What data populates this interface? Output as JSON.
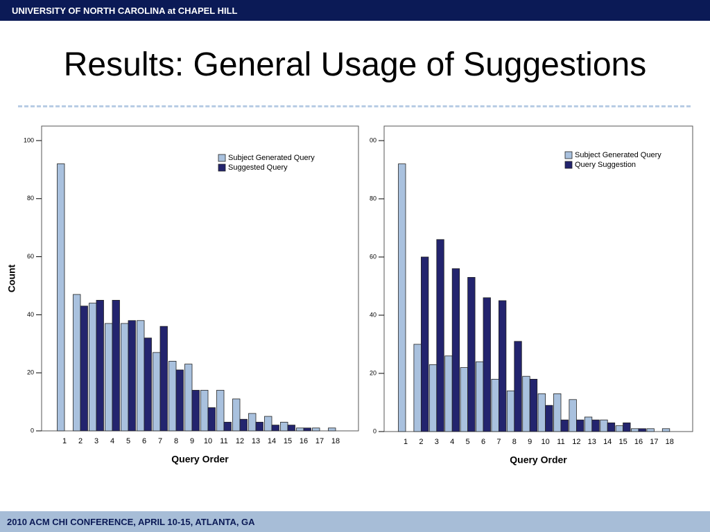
{
  "header": {
    "text": "UNIVERSITY OF NORTH CAROLINA at CHAPEL HILL"
  },
  "title": "Results: General Usage of Suggestions",
  "footer": {
    "text": "2010 ACM CHI CONFERENCE, APRIL 10-15, ATLANTA, GA"
  },
  "chart_data": [
    {
      "type": "bar",
      "x_label": "Query Order",
      "y_label": "Count",
      "categories": [
        "1",
        "2",
        "3",
        "4",
        "5",
        "6",
        "7",
        "8",
        "9",
        "10",
        "11",
        "12",
        "13",
        "14",
        "15",
        "16",
        "17",
        "18"
      ],
      "series": [
        {
          "name": "Subject Generated Query",
          "color": "#a9c1de",
          "values": [
            92,
            47,
            44,
            37,
            37,
            38,
            27,
            24,
            23,
            14,
            14,
            11,
            6,
            5,
            3,
            1,
            1,
            1
          ]
        },
        {
          "name": "Suggested Query",
          "color": "#23246e",
          "values": [
            0,
            43,
            45,
            45,
            38,
            32,
            36,
            21,
            14,
            8,
            3,
            4,
            3,
            2,
            2,
            1,
            0,
            0
          ]
        }
      ],
      "ylim": [
        0,
        105
      ],
      "yticks": [
        0,
        20,
        40,
        60,
        80,
        100
      ],
      "legend": "top-right"
    },
    {
      "type": "bar",
      "x_label": "Query Order",
      "categories": [
        "1",
        "2",
        "3",
        "4",
        "5",
        "6",
        "7",
        "8",
        "9",
        "10",
        "11",
        "12",
        "13",
        "14",
        "15",
        "16",
        "17",
        "18"
      ],
      "series": [
        {
          "name": "Subject Generated Query",
          "color": "#a9c1de",
          "values": [
            92,
            30,
            23,
            26,
            22,
            24,
            18,
            14,
            19,
            13,
            13,
            11,
            5,
            4,
            2,
            1,
            1,
            1
          ]
        },
        {
          "name": "Query Suggestion",
          "color": "#23246e",
          "values": [
            0,
            60,
            66,
            56,
            53,
            46,
            45,
            31,
            18,
            9,
            4,
            4,
            4,
            3,
            3,
            1,
            0,
            0
          ]
        }
      ],
      "ylim": [
        0,
        105
      ],
      "yticks": [
        0,
        20,
        40,
        60,
        80,
        {
          "value": 100,
          "label": "00"
        }
      ],
      "legend": "top-right"
    }
  ]
}
